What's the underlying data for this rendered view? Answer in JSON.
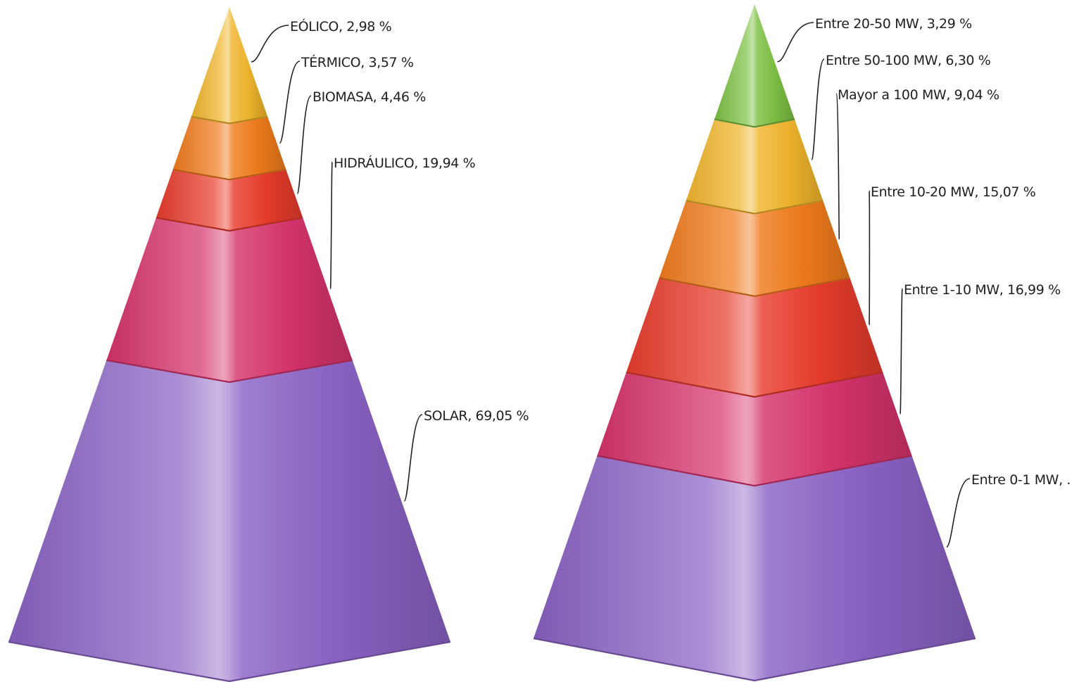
{
  "chart_data": [
    {
      "type": "pyramid",
      "title": "",
      "segments": [
        {
          "label": "SOLAR, 69,05 %",
          "name": "SOLAR",
          "value": 69.05,
          "color": "#8a62c4"
        },
        {
          "label": "HIDRÁULICO, 19,94 %",
          "name": "HIDRÁULICO",
          "value": 19.94,
          "color": "#d6336c"
        },
        {
          "label": "BIOMASA, 4,46 %",
          "name": "BIOMASA",
          "value": 4.46,
          "color": "#e83c2c"
        },
        {
          "label": "TÉRMICO, 3,57 %",
          "name": "TÉRMICO",
          "value": 3.57,
          "color": "#f07b1c"
        },
        {
          "label": "EÓLICO, 2,98 %",
          "name": "EÓLICO",
          "value": 2.98,
          "color": "#f0b52c"
        }
      ]
    },
    {
      "type": "pyramid",
      "title": "",
      "segments": [
        {
          "label": "Entre 0-1 MW, .",
          "name": "Entre 0-1 MW",
          "value": 49.31,
          "color": "#8a62c4"
        },
        {
          "label": "Entre 1-10 MW, 16,99 %",
          "name": "Entre 1-10 MW",
          "value": 16.99,
          "color": "#d6336c"
        },
        {
          "label": "Entre 10-20 MW, 15,07 %",
          "name": "Entre 10-20 MW",
          "value": 15.07,
          "color": "#e83c2c"
        },
        {
          "label": "Mayor a 100 MW, 9,04 %",
          "name": "Mayor a 100 MW",
          "value": 9.04,
          "color": "#f07b1c"
        },
        {
          "label": "Entre 50-100 MW, 6,30 %",
          "name": "Entre 50-100 MW",
          "value": 6.3,
          "color": "#f0b52c"
        },
        {
          "label": "Entre 20-50 MW, 3,29 %",
          "name": "Entre 20-50 MW",
          "value": 3.29,
          "color": "#7cc043"
        }
      ]
    }
  ]
}
